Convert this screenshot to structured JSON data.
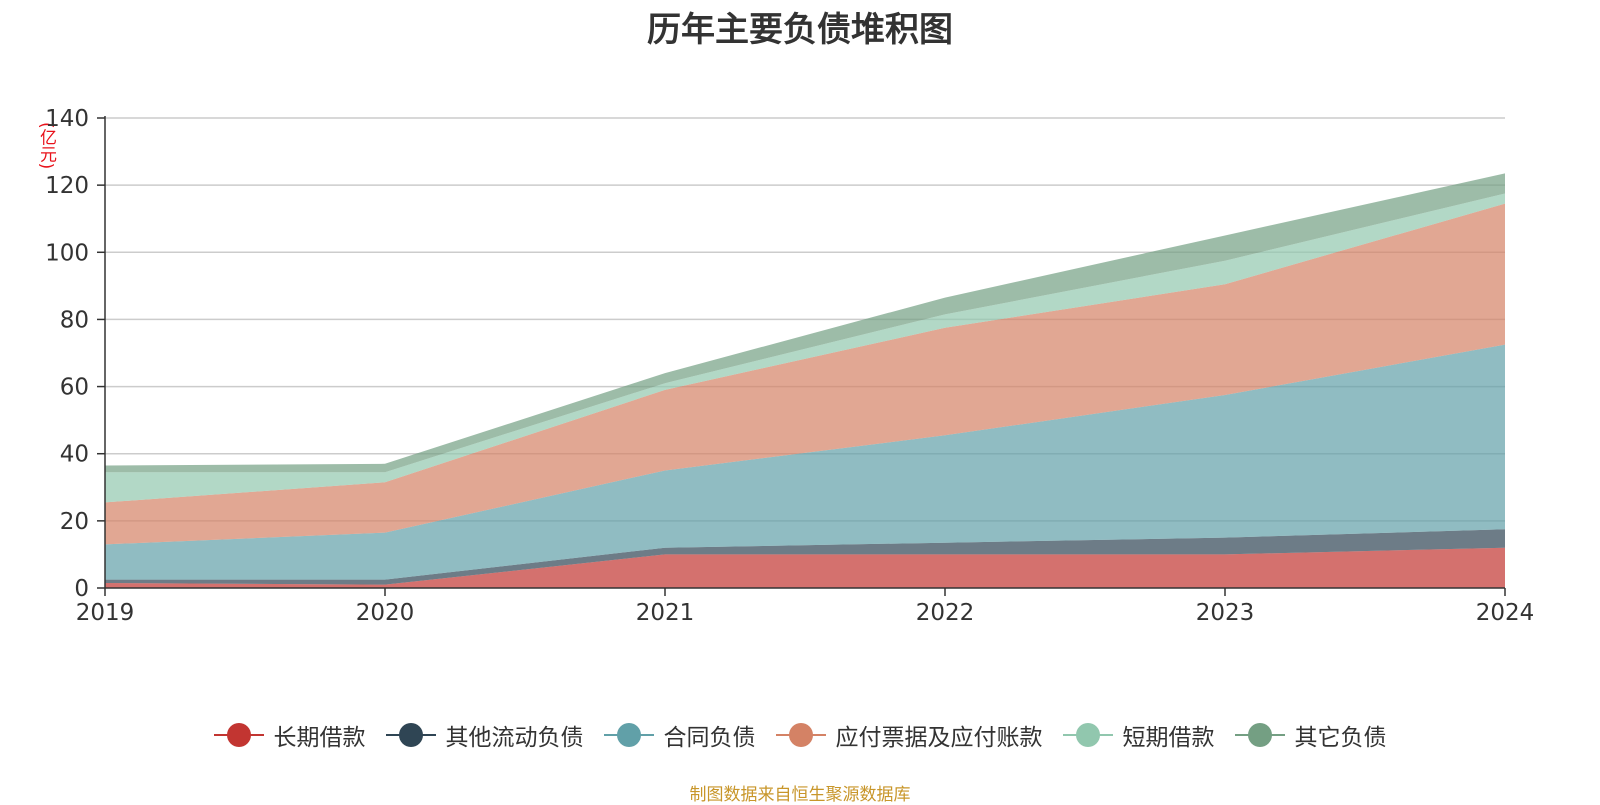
{
  "chart_data": {
    "type": "area",
    "stacked": true,
    "title": "历年主要负债堆积图",
    "unit_label": "(亿元)",
    "x": [
      "2019",
      "2020",
      "2021",
      "2022",
      "2023",
      "2024"
    ],
    "ylim": [
      0,
      140
    ],
    "yticks": [
      "0",
      "20",
      "40",
      "60",
      "80",
      "100",
      "120",
      "140"
    ],
    "grid": true,
    "legend_position": "bottom",
    "series": [
      {
        "name": "长期借款",
        "color": "#c23531",
        "values": [
          1.5,
          1.0,
          10.0,
          10.0,
          10.0,
          12.0
        ]
      },
      {
        "name": "其他流动负债",
        "color": "#2f4554",
        "values": [
          1.0,
          1.5,
          2.0,
          3.5,
          5.0,
          5.5
        ]
      },
      {
        "name": "合同负债",
        "color": "#61a0a8",
        "values": [
          10.5,
          14.0,
          23.0,
          32.0,
          42.5,
          55.0
        ]
      },
      {
        "name": "应付票据及应付账款",
        "color": "#d48265",
        "values": [
          12.5,
          15.0,
          24.0,
          32.0,
          33.0,
          42.0
        ]
      },
      {
        "name": "短期借款",
        "color": "#91c7ae",
        "values": [
          9.0,
          3.0,
          2.0,
          4.0,
          7.0,
          3.0
        ]
      },
      {
        "name": "其它负债",
        "color": "#749f83",
        "values": [
          2.0,
          2.5,
          3.0,
          5.0,
          7.5,
          6.0
        ]
      }
    ]
  },
  "footer": {
    "source_note": "制图数据来自恒生聚源数据库"
  }
}
